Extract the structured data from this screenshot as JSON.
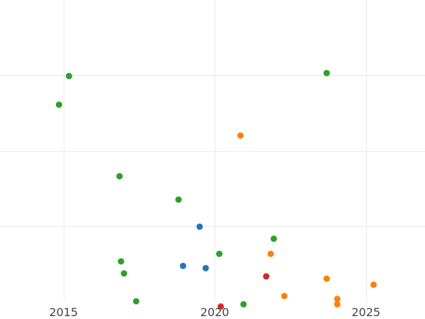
{
  "chart_data": {
    "type": "scatter",
    "title": "",
    "xlabel": "",
    "ylabel": "",
    "grid": true,
    "legend": "none",
    "xlim": [
      2012.9,
      2026.95
    ],
    "ylim": [
      0,
      4
    ],
    "x_ticks": [
      2015,
      2020,
      2025
    ],
    "x_tick_labels": [
      "2015",
      "2020",
      "2025"
    ],
    "y_gridlines": [
      1,
      2,
      3
    ],
    "series": [
      {
        "color": "#2ca02c",
        "points": [
          {
            "x": 2014.85,
            "y": 2.61
          },
          {
            "x": 2015.18,
            "y": 2.99
          },
          {
            "x": 2016.85,
            "y": 1.66
          },
          {
            "x": 2016.9,
            "y": 0.53
          },
          {
            "x": 2017.0,
            "y": 0.37
          },
          {
            "x": 2017.4,
            "y": 0.0
          },
          {
            "x": 2018.8,
            "y": 1.35
          },
          {
            "x": 2020.15,
            "y": 0.63
          },
          {
            "x": 2020.95,
            "y": -0.04
          },
          {
            "x": 2021.95,
            "y": 0.83
          },
          {
            "x": 2023.7,
            "y": 3.03
          }
        ]
      },
      {
        "color": "#1f77b4",
        "points": [
          {
            "x": 2018.95,
            "y": 0.47
          },
          {
            "x": 2019.5,
            "y": 0.99
          },
          {
            "x": 2019.7,
            "y": 0.44
          }
        ]
      },
      {
        "color": "#ff7f0e",
        "points": [
          {
            "x": 2020.85,
            "y": 2.2
          },
          {
            "x": 2021.85,
            "y": 0.63
          },
          {
            "x": 2022.3,
            "y": 0.07
          },
          {
            "x": 2023.7,
            "y": 0.3
          },
          {
            "x": 2024.05,
            "y": 0.03
          },
          {
            "x": 2024.05,
            "y": -0.04
          },
          {
            "x": 2025.25,
            "y": 0.22
          }
        ]
      },
      {
        "color": "#d62728",
        "points": [
          {
            "x": 2020.2,
            "y": -0.07
          },
          {
            "x": 2021.7,
            "y": 0.33
          }
        ]
      }
    ]
  }
}
